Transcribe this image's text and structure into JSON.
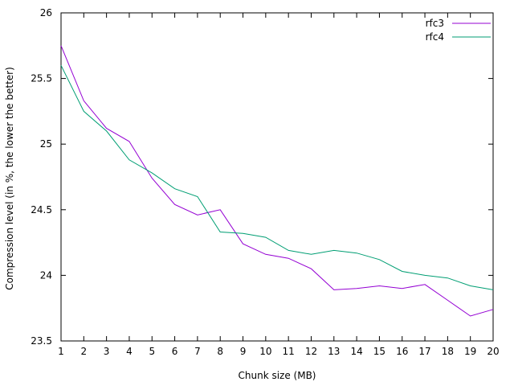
{
  "chart_data": {
    "type": "line",
    "title": "",
    "xlabel": "Chunk size (MB)",
    "ylabel": "Compression level (in %, the lower the better)",
    "x": [
      1,
      2,
      3,
      4,
      5,
      6,
      7,
      8,
      9,
      10,
      11,
      12,
      13,
      14,
      15,
      16,
      17,
      18,
      19,
      20
    ],
    "xlim": [
      1,
      20
    ],
    "ylim": [
      23.5,
      26
    ],
    "xticks": [
      "1",
      "2",
      "3",
      "4",
      "5",
      "6",
      "7",
      "8",
      "9",
      "10",
      "11",
      "12",
      "13",
      "14",
      "15",
      "16",
      "17",
      "18",
      "19",
      "20"
    ],
    "yticks": [
      "23.5",
      "24",
      "24.5",
      "25",
      "25.5",
      "26"
    ],
    "grid": false,
    "legend_position": "top-right",
    "series": [
      {
        "name": "rfc3",
        "color": "#9400d3",
        "values": [
          25.75,
          25.33,
          25.12,
          25.02,
          24.74,
          24.54,
          24.46,
          24.5,
          24.24,
          24.16,
          24.13,
          24.05,
          23.89,
          23.9,
          23.92,
          23.9,
          23.93,
          23.81,
          23.69,
          23.74
        ]
      },
      {
        "name": "rfc4",
        "color": "#009e73",
        "values": [
          25.6,
          25.25,
          25.1,
          24.88,
          24.78,
          24.66,
          24.6,
          24.33,
          24.32,
          24.29,
          24.19,
          24.16,
          24.19,
          24.17,
          24.12,
          24.03,
          24.0,
          23.98,
          23.92,
          23.89
        ]
      }
    ]
  }
}
